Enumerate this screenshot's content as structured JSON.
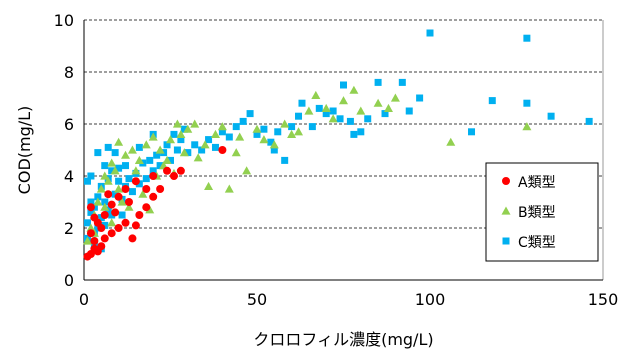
{
  "chart_data": {
    "type": "scatter",
    "xlabel": "クロロフィル濃度(mg/L)",
    "ylabel": "COD(mg/L)",
    "xlim": [
      0,
      150
    ],
    "ylim": [
      0,
      10
    ],
    "x_ticks": [
      "0",
      "50",
      "100",
      "150"
    ],
    "y_ticks": [
      "0",
      "2",
      "4",
      "6",
      "8",
      "10"
    ],
    "grid": "horizontal dashed",
    "legend_position": "right",
    "series": [
      {
        "name": "A類型",
        "color": "#ff0000",
        "marker": "circle",
        "points": [
          [
            1,
            0.9
          ],
          [
            2,
            1.0
          ],
          [
            3,
            1.2
          ],
          [
            4,
            1.1
          ],
          [
            5,
            1.3
          ],
          [
            3,
            1.5
          ],
          [
            6,
            1.6
          ],
          [
            8,
            1.8
          ],
          [
            10,
            2.0
          ],
          [
            12,
            2.2
          ],
          [
            14,
            1.6
          ],
          [
            15,
            2.1
          ],
          [
            16,
            2.5
          ],
          [
            18,
            2.8
          ],
          [
            20,
            3.2
          ],
          [
            22,
            3.5
          ],
          [
            24,
            4.2
          ],
          [
            26,
            4.0
          ],
          [
            28,
            4.2
          ],
          [
            2,
            1.8
          ],
          [
            4,
            2.2
          ],
          [
            6,
            2.5
          ],
          [
            8,
            2.9
          ],
          [
            10,
            3.2
          ],
          [
            12,
            3.5
          ],
          [
            15,
            3.8
          ],
          [
            18,
            3.5
          ],
          [
            20,
            4.0
          ],
          [
            7,
            3.3
          ],
          [
            9,
            2.6
          ],
          [
            5,
            2.0
          ],
          [
            13,
            3.0
          ],
          [
            40,
            5.0
          ],
          [
            2,
            2.8
          ],
          [
            3,
            2.4
          ]
        ]
      },
      {
        "name": "B類型",
        "color": "#92d050",
        "marker": "triangle",
        "points": [
          [
            1,
            1.5
          ],
          [
            2,
            2.0
          ],
          [
            3,
            2.5
          ],
          [
            4,
            3.0
          ],
          [
            5,
            3.5
          ],
          [
            6,
            4.0
          ],
          [
            7,
            3.8
          ],
          [
            8,
            4.5
          ],
          [
            9,
            4.2
          ],
          [
            10,
            3.5
          ],
          [
            12,
            4.8
          ],
          [
            14,
            5.0
          ],
          [
            15,
            4.2
          ],
          [
            16,
            4.6
          ],
          [
            18,
            5.2
          ],
          [
            20,
            5.5
          ],
          [
            22,
            5.0
          ],
          [
            24,
            4.6
          ],
          [
            25,
            5.4
          ],
          [
            28,
            5.6
          ],
          [
            30,
            5.8
          ],
          [
            32,
            6.0
          ],
          [
            35,
            5.2
          ],
          [
            36,
            3.6
          ],
          [
            38,
            5.6
          ],
          [
            40,
            5.9
          ],
          [
            42,
            3.5
          ],
          [
            44,
            4.9
          ],
          [
            45,
            5.5
          ],
          [
            47,
            4.2
          ],
          [
            50,
            5.8
          ],
          [
            52,
            5.4
          ],
          [
            55,
            5.2
          ],
          [
            58,
            6.0
          ],
          [
            60,
            5.6
          ],
          [
            62,
            5.7
          ],
          [
            65,
            6.5
          ],
          [
            67,
            7.1
          ],
          [
            70,
            6.6
          ],
          [
            72,
            6.2
          ],
          [
            75,
            6.9
          ],
          [
            78,
            7.3
          ],
          [
            80,
            6.5
          ],
          [
            85,
            6.8
          ],
          [
            88,
            6.6
          ],
          [
            90,
            7.0
          ],
          [
            106,
            5.3
          ],
          [
            128,
            5.9
          ],
          [
            11,
            3.0
          ],
          [
            13,
            2.8
          ],
          [
            17,
            3.3
          ],
          [
            19,
            2.7
          ],
          [
            21,
            4.0
          ],
          [
            23,
            4.4
          ],
          [
            26,
            4.1
          ],
          [
            29,
            4.9
          ],
          [
            33,
            4.7
          ],
          [
            8,
            2.2
          ],
          [
            6,
            2.8
          ],
          [
            3,
            1.8
          ],
          [
            10,
            5.3
          ],
          [
            27,
            6.0
          ]
        ]
      },
      {
        "name": "C類型",
        "color": "#00b0f0",
        "marker": "square",
        "points": [
          [
            1,
            1.6
          ],
          [
            1,
            2.2
          ],
          [
            2,
            2.6
          ],
          [
            2,
            3.0
          ],
          [
            3,
            1.8
          ],
          [
            3,
            2.8
          ],
          [
            4,
            2.0
          ],
          [
            4,
            3.2
          ],
          [
            5,
            2.4
          ],
          [
            5,
            3.6
          ],
          [
            6,
            2.1
          ],
          [
            6,
            3.0
          ],
          [
            7,
            2.7
          ],
          [
            7,
            3.9
          ],
          [
            8,
            2.5
          ],
          [
            8,
            4.2
          ],
          [
            9,
            3.3
          ],
          [
            10,
            3.8
          ],
          [
            10,
            4.3
          ],
          [
            11,
            3.1
          ],
          [
            12,
            3.6
          ],
          [
            12,
            4.4
          ],
          [
            13,
            3.9
          ],
          [
            14,
            3.4
          ],
          [
            15,
            4.1
          ],
          [
            16,
            3.7
          ],
          [
            17,
            4.5
          ],
          [
            18,
            3.9
          ],
          [
            19,
            4.6
          ],
          [
            20,
            4.2
          ],
          [
            21,
            4.8
          ],
          [
            22,
            4.4
          ],
          [
            23,
            4.9
          ],
          [
            24,
            5.2
          ],
          [
            25,
            4.6
          ],
          [
            26,
            5.6
          ],
          [
            27,
            5.0
          ],
          [
            28,
            5.4
          ],
          [
            29,
            5.8
          ],
          [
            30,
            4.9
          ],
          [
            32,
            5.2
          ],
          [
            34,
            5.0
          ],
          [
            36,
            5.4
          ],
          [
            38,
            5.1
          ],
          [
            40,
            5.7
          ],
          [
            42,
            5.5
          ],
          [
            44,
            5.9
          ],
          [
            46,
            6.1
          ],
          [
            48,
            6.4
          ],
          [
            50,
            5.6
          ],
          [
            52,
            5.8
          ],
          [
            54,
            5.3
          ],
          [
            55,
            5.0
          ],
          [
            56,
            5.7
          ],
          [
            58,
            4.6
          ],
          [
            60,
            5.9
          ],
          [
            62,
            6.3
          ],
          [
            63,
            6.8
          ],
          [
            66,
            5.9
          ],
          [
            68,
            6.6
          ],
          [
            70,
            6.4
          ],
          [
            72,
            6.5
          ],
          [
            74,
            6.2
          ],
          [
            75,
            7.5
          ],
          [
            77,
            6.1
          ],
          [
            78,
            5.6
          ],
          [
            80,
            5.7
          ],
          [
            82,
            6.2
          ],
          [
            85,
            7.6
          ],
          [
            87,
            6.4
          ],
          [
            92,
            7.6
          ],
          [
            94,
            6.5
          ],
          [
            97,
            7.0
          ],
          [
            100,
            9.5
          ],
          [
            112,
            5.7
          ],
          [
            118,
            6.9
          ],
          [
            128,
            6.8
          ],
          [
            128,
            9.3
          ],
          [
            135,
            6.3
          ],
          [
            146,
            6.1
          ],
          [
            16,
            5.1
          ],
          [
            20,
            5.6
          ],
          [
            9,
            4.9
          ],
          [
            2,
            4.0
          ],
          [
            4,
            4.9
          ],
          [
            7,
            5.1
          ],
          [
            3,
            1.4
          ],
          [
            5,
            1.2
          ],
          [
            1,
            3.8
          ],
          [
            6,
            4.4
          ],
          [
            11,
            2.5
          ]
        ]
      }
    ]
  }
}
